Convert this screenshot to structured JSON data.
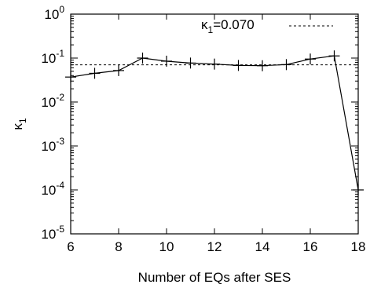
{
  "chart_data": {
    "type": "line",
    "xlabel": "Number of EQs after SES",
    "ylabel": "κ",
    "ylabel_sub": "1",
    "xlim": [
      6,
      18
    ],
    "ylim": [
      1e-05,
      1
    ],
    "y_scale": "log",
    "x_ticks": [
      6,
      8,
      10,
      12,
      14,
      16,
      18
    ],
    "y_ticks": [
      {
        "value": 1e-05,
        "base": "10",
        "exp": "-5"
      },
      {
        "value": 0.0001,
        "base": "10",
        "exp": "-4"
      },
      {
        "value": 0.001,
        "base": "10",
        "exp": "-3"
      },
      {
        "value": 0.01,
        "base": "10",
        "exp": "-2"
      },
      {
        "value": 0.1,
        "base": "10",
        "exp": "-1"
      },
      {
        "value": 1,
        "base": "10",
        "exp": "0"
      }
    ],
    "legend_position": "top-right",
    "series": [
      {
        "style": "solid-with-plus-markers",
        "color": "#000000",
        "x": [
          6,
          7,
          8,
          9,
          10,
          11,
          12,
          13,
          14,
          15,
          16,
          17,
          18
        ],
        "y": [
          0.037,
          0.045,
          0.052,
          0.1,
          0.085,
          0.077,
          0.073,
          0.068,
          0.067,
          0.071,
          0.095,
          0.112,
          0.0001
        ]
      },
      {
        "style": "dashed",
        "color": "#000000",
        "legend_symbol": "κ",
        "legend_sub": "1",
        "legend_value": "=0.070",
        "constant_y": 0.07
      }
    ]
  }
}
